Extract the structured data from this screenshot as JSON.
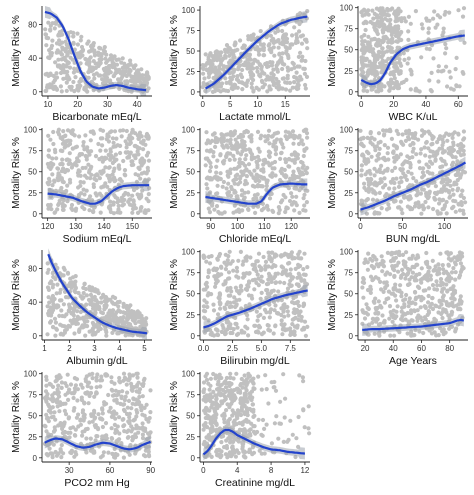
{
  "styles": {
    "point_color": "#c0c0c0",
    "smooth_color": "#2343cc",
    "band_color": "#9aa3ad",
    "axis_color": "#222222"
  },
  "chart_data": [
    {
      "type": "scatter",
      "xlabel": "Bicarbonate mEq/L",
      "ylabel": "Mortality Risk %",
      "xlim": [
        8,
        45
      ],
      "ylim": [
        -5,
        102
      ],
      "xticks": [
        10,
        20,
        30,
        40
      ],
      "yticks": [
        0,
        40,
        80
      ],
      "cloud": {
        "x": [
          9,
          44
        ],
        "y": [
          0,
          95
        ],
        "taper_to": 25
      },
      "smooth": {
        "x": [
          9,
          11,
          13,
          15,
          17,
          19,
          21,
          23,
          25,
          27,
          29,
          31,
          33,
          35,
          37,
          40,
          43
        ],
        "y": [
          95,
          93,
          88,
          78,
          62,
          42,
          24,
          12,
          6,
          4,
          5,
          7,
          8,
          7,
          5,
          3,
          2
        ]
      }
    },
    {
      "type": "scatter",
      "xlabel": "Lactate mmol/L",
      "ylabel": "Mortality Risk %",
      "xlim": [
        -0.5,
        19.5
      ],
      "ylim": [
        -5,
        105
      ],
      "xticks": [
        0,
        5,
        10,
        15
      ],
      "yticks": [
        0,
        25,
        50,
        75,
        100
      ],
      "cloud": {
        "x": [
          0,
          19
        ],
        "y": [
          0,
          100
        ],
        "taper_from": 45
      },
      "smooth": {
        "x": [
          0.5,
          2,
          4,
          6,
          8,
          10,
          12,
          14,
          16,
          18,
          19
        ],
        "y": [
          4,
          10,
          22,
          36,
          50,
          63,
          74,
          83,
          88,
          91,
          92
        ]
      }
    },
    {
      "type": "scatter",
      "xlabel": "WBC K/uL",
      "ylabel": "Mortality Risk %",
      "xlim": [
        -2,
        66
      ],
      "ylim": [
        -5,
        102
      ],
      "xticks": [
        0,
        20,
        40,
        60
      ],
      "yticks": [
        0,
        25,
        50,
        75,
        100
      ],
      "cloud": {
        "x": [
          0,
          64
        ],
        "y": [
          0,
          100
        ],
        "dense_until": 25
      },
      "smooth": {
        "x": [
          0,
          3,
          6,
          9,
          12,
          15,
          18,
          22,
          26,
          30,
          35,
          40,
          45,
          50,
          55,
          60,
          64
        ],
        "y": [
          14,
          11,
          9,
          10,
          14,
          23,
          35,
          45,
          51,
          54,
          56,
          58,
          60,
          62,
          64,
          66,
          67
        ]
      }
    },
    {
      "type": "scatter",
      "xlabel": "Sodium mEq/L",
      "ylabel": "Mortality Risk %",
      "xlim": [
        118,
        157
      ],
      "ylim": [
        -5,
        102
      ],
      "xticks": [
        120,
        130,
        140,
        150
      ],
      "yticks": [
        0,
        25,
        50,
        75,
        100
      ],
      "cloud": {
        "x": [
          120,
          156
        ],
        "y": [
          0,
          100
        ]
      },
      "smooth": {
        "x": [
          120,
          123,
          126,
          129,
          132,
          135,
          137,
          139,
          141,
          143,
          145,
          147,
          150,
          153,
          156
        ],
        "y": [
          24,
          23,
          21,
          19,
          15,
          12,
          12,
          15,
          21,
          27,
          31,
          33,
          34,
          34,
          34
        ]
      }
    },
    {
      "type": "scatter",
      "xlabel": "Chloride mEq/L",
      "ylabel": "Mortality Risk %",
      "xlim": [
        86,
        127
      ],
      "ylim": [
        -5,
        102
      ],
      "xticks": [
        90,
        100,
        110,
        120
      ],
      "yticks": [
        0,
        25,
        50,
        75,
        100
      ],
      "cloud": {
        "x": [
          88,
          126
        ],
        "y": [
          0,
          100
        ]
      },
      "smooth": {
        "x": [
          88,
          92,
          96,
          100,
          104,
          107,
          109,
          111,
          113,
          116,
          120,
          124,
          126
        ],
        "y": [
          20,
          18,
          16,
          14,
          12,
          12,
          15,
          24,
          31,
          35,
          36,
          35,
          35
        ]
      }
    },
    {
      "type": "scatter",
      "xlabel": "BUN mg/dL",
      "ylabel": "Mortality Risk %",
      "xlim": [
        -3,
        128
      ],
      "ylim": [
        -5,
        102
      ],
      "xticks": [
        0,
        50,
        100
      ],
      "yticks": [
        0,
        25,
        50,
        75,
        100
      ],
      "cloud": {
        "x": [
          0,
          125
        ],
        "y": [
          0,
          100
        ]
      },
      "smooth": {
        "x": [
          0,
          10,
          20,
          30,
          40,
          50,
          60,
          70,
          80,
          90,
          100,
          110,
          120,
          125
        ],
        "y": [
          5,
          8,
          12,
          16,
          21,
          25,
          29,
          34,
          38,
          43,
          48,
          53,
          58,
          61
        ]
      }
    },
    {
      "type": "scatter",
      "xlabel": "Albumin g/dL",
      "ylabel": "Mortality Risk %",
      "xlim": [
        0.9,
        5.3
      ],
      "ylim": [
        -5,
        102
      ],
      "xticks": [
        1,
        2,
        3,
        4,
        5
      ],
      "yticks": [
        0,
        40,
        80
      ],
      "cloud": {
        "x": [
          1.1,
          5.1
        ],
        "y": [
          0,
          95
        ],
        "taper_to": 25
      },
      "smooth": {
        "x": [
          1.15,
          1.3,
          1.5,
          1.7,
          1.9,
          2.1,
          2.4,
          2.7,
          3.0,
          3.3,
          3.6,
          3.9,
          4.2,
          4.5,
          4.8,
          5.1
        ],
        "y": [
          97,
          86,
          74,
          63,
          54,
          45,
          36,
          28,
          22,
          16,
          12,
          9,
          7,
          5,
          4,
          3
        ]
      }
    },
    {
      "type": "scatter",
      "xlabel": "Bilirubin mg/dL",
      "ylabel": "Mortality Risk %",
      "xlim": [
        -0.3,
        9.2
      ],
      "ylim": [
        -5,
        102
      ],
      "xticks": [
        0.0,
        2.5,
        5.0,
        7.5
      ],
      "yticks": [
        0,
        25,
        50,
        75,
        100
      ],
      "cloud": {
        "x": [
          0,
          9
        ],
        "y": [
          0,
          100
        ]
      },
      "smooth": {
        "x": [
          0,
          0.5,
          1,
          1.5,
          2,
          2.5,
          3,
          4,
          5,
          6,
          7,
          8,
          9
        ],
        "y": [
          10,
          12,
          15,
          19,
          23,
          25,
          27,
          32,
          38,
          44,
          48,
          51,
          54
        ]
      }
    },
    {
      "type": "scatter",
      "xlabel": "Age  Years",
      "ylabel": "Mortality Risk %",
      "xlim": [
        15,
        93
      ],
      "ylim": [
        -5,
        102
      ],
      "xticks": [
        20,
        40,
        60,
        80
      ],
      "yticks": [
        0,
        25,
        50,
        75,
        100
      ],
      "cloud": {
        "x": [
          18,
          90
        ],
        "y": [
          0,
          100
        ]
      },
      "smooth": {
        "x": [
          18,
          25,
          30,
          40,
          50,
          60,
          70,
          75,
          80,
          85,
          88,
          90
        ],
        "y": [
          7,
          8,
          8,
          9,
          10,
          11,
          13,
          14,
          15,
          18,
          19,
          18
        ]
      }
    },
    {
      "type": "scatter",
      "xlabel": "PCO2 mm Hg",
      "ylabel": "Mortality Risk %",
      "xlim": [
        10,
        91
      ],
      "ylim": [
        -5,
        102
      ],
      "xticks": [
        30,
        60,
        90
      ],
      "yticks": [
        0,
        25,
        50,
        75,
        100
      ],
      "cloud": {
        "x": [
          12,
          90
        ],
        "y": [
          0,
          100
        ]
      },
      "smooth": {
        "x": [
          12,
          16,
          20,
          25,
          30,
          35,
          40,
          45,
          50,
          55,
          60,
          65,
          70,
          75,
          80,
          85,
          90
        ],
        "y": [
          18,
          21,
          23,
          22,
          18,
          14,
          12,
          13,
          16,
          18,
          17,
          14,
          11,
          10,
          12,
          16,
          19
        ]
      }
    },
    {
      "type": "scatter",
      "xlabel": "Creatinine mg/dL",
      "ylabel": "Mortality Risk %",
      "xlim": [
        -0.4,
        12.6
      ],
      "ylim": [
        -5,
        102
      ],
      "xticks": [
        0,
        4,
        8,
        12
      ],
      "yticks": [
        0,
        25,
        50,
        75,
        100
      ],
      "cloud": {
        "x": [
          0,
          12.5
        ],
        "y": [
          0,
          100
        ],
        "dense_until": 6
      },
      "smooth": {
        "x": [
          0,
          0.5,
          1,
          1.5,
          2,
          2.5,
          3,
          3.5,
          4,
          5,
          6,
          7,
          8,
          9,
          10,
          11,
          12
        ],
        "y": [
          4,
          8,
          15,
          23,
          29,
          33,
          33,
          31,
          27,
          22,
          17,
          13,
          10,
          9,
          7,
          6,
          5
        ]
      }
    }
  ]
}
